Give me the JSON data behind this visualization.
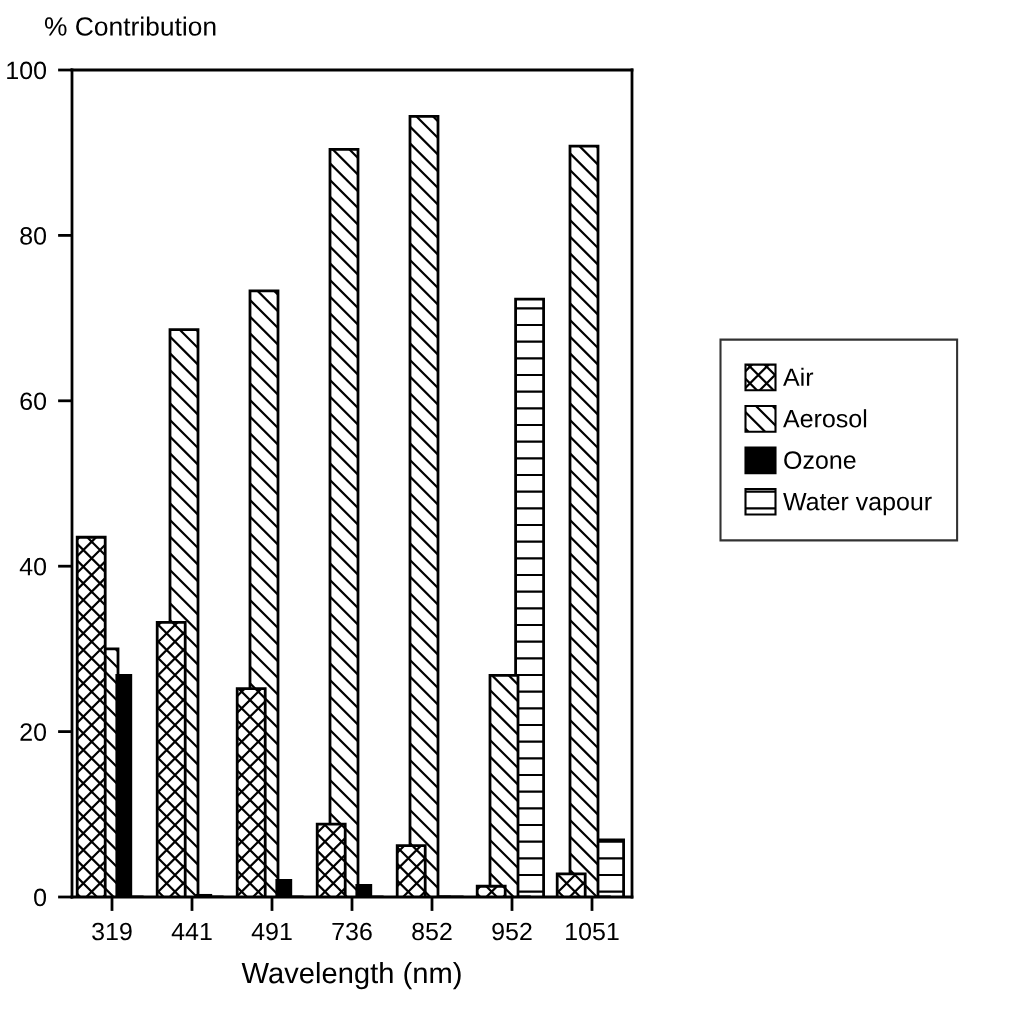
{
  "chart_data": {
    "type": "bar",
    "ylabel": "% Contribution",
    "xlabel": "Wavelength (nm)",
    "categories": [
      "319",
      "441",
      "491",
      "736",
      "852",
      "952",
      "1051"
    ],
    "series": [
      {
        "name": "Air",
        "color": "#000000",
        "values": [
          43.5,
          33.2,
          25.2,
          8.8,
          6.2,
          1.3,
          2.8
        ]
      },
      {
        "name": "Aerosol",
        "color": "#000000",
        "values": [
          30.0,
          68.6,
          73.3,
          90.4,
          94.4,
          26.8,
          90.8
        ]
      },
      {
        "name": "Ozone",
        "color": "#000000",
        "values": [
          26.8,
          0.2,
          2.0,
          1.4,
          0,
          0,
          0
        ]
      },
      {
        "name": "Water vapour",
        "color": "#000000",
        "values": [
          0,
          0,
          0,
          0,
          0,
          72.3,
          6.9
        ]
      }
    ],
    "ylim": [
      0,
      100
    ],
    "yticks": [
      0,
      20,
      40,
      60,
      80,
      100
    ],
    "grid": false,
    "legend": "right"
  }
}
